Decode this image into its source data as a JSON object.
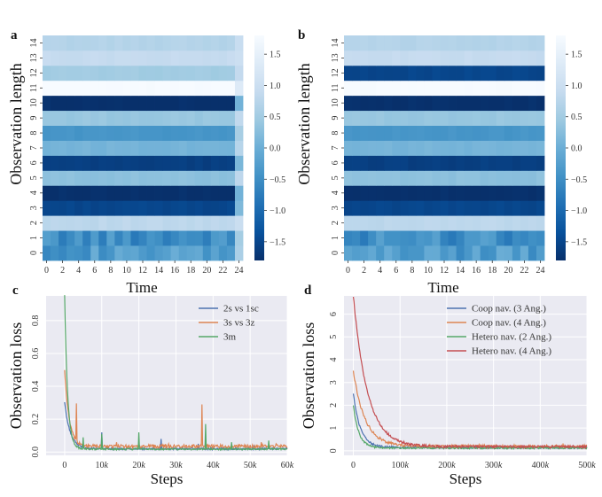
{
  "colormap": {
    "name": "Blues_r",
    "stops": [
      "#08306b",
      "#08519c",
      "#2171b5",
      "#4292c6",
      "#6baed6",
      "#9ecae1",
      "#c6dbef",
      "#deebf7",
      "#f7fbff"
    ]
  },
  "chart_data": [
    {
      "panel": "a",
      "type": "heatmap",
      "xlabel": "Time",
      "ylabel": "Observation length",
      "x_ticks": [
        "0",
        "2",
        "4",
        "6",
        "8",
        "10",
        "12",
        "14",
        "16",
        "18",
        "20",
        "22",
        "24"
      ],
      "y_ticks": [
        "0",
        "1",
        "2",
        "3",
        "4",
        "5",
        "6",
        "7",
        "8",
        "9",
        "10",
        "11",
        "12",
        "13",
        "14"
      ],
      "n_cols": 25,
      "colorbar": {
        "range": [
          -1.8,
          1.8
        ],
        "ticks": [
          "-1.5",
          "-1.0",
          "-0.5",
          "0.0",
          "0.5",
          "1.0",
          "1.5"
        ]
      },
      "row_values": [
        -0.3,
        -0.5,
        0.8,
        -1.5,
        -1.8,
        0.3,
        -1.6,
        0.1,
        -0.4,
        0.4,
        -1.8,
        1.8,
        0.5,
        0.9,
        0.7
      ],
      "row_variation": {
        "0": 0.3,
        "1": 0.3,
        "2": 0.05
      },
      "last_col_fade": true
    },
    {
      "panel": "b",
      "type": "heatmap",
      "xlabel": "Time",
      "ylabel": "Observation length",
      "x_ticks": [
        "0",
        "2",
        "4",
        "6",
        "8",
        "10",
        "12",
        "14",
        "16",
        "18",
        "20",
        "22",
        "24"
      ],
      "y_ticks": [
        "0",
        "1",
        "2",
        "3",
        "4",
        "5",
        "6",
        "7",
        "8",
        "9",
        "10",
        "11",
        "12",
        "13",
        "14"
      ],
      "n_cols": 25,
      "colorbar": {
        "range": [
          -1.8,
          1.8
        ],
        "ticks": [
          "-1.5",
          "-1.0",
          "-0.5",
          "0.0",
          "0.5",
          "1.0",
          "1.5"
        ]
      },
      "row_values": [
        -0.3,
        -0.5,
        0.8,
        -1.5,
        -1.8,
        0.3,
        -1.6,
        0.1,
        -0.4,
        0.4,
        -1.8,
        1.8,
        -1.5,
        0.9,
        0.7
      ],
      "row_variation": {
        "0": 0.3,
        "1": 0.3,
        "2": 0.05
      },
      "last_col_fade": false
    },
    {
      "panel": "c",
      "type": "line",
      "xlabel": "Steps",
      "ylabel": "Observation loss",
      "xlim": [
        -5000,
        60000
      ],
      "ylim": [
        -0.02,
        0.95
      ],
      "x_ticks": [
        0,
        10000,
        20000,
        30000,
        40000,
        50000,
        60000
      ],
      "x_tick_labels": [
        "0",
        "10k",
        "20k",
        "30k",
        "40k",
        "50k",
        "60k"
      ],
      "y_ticks": [
        0.0,
        0.2,
        0.4,
        0.6,
        0.8
      ],
      "y_tick_labels": [
        "0.0",
        "0.2",
        "0.4",
        "0.6",
        "0.8"
      ],
      "legend_position": "top-right",
      "series": [
        {
          "name": "2s vs 1sc",
          "color": "#4c72b0",
          "start": 0.3,
          "plateau": 0.02,
          "decay": 1500,
          "spikes": [
            [
              3000,
              0.05
            ],
            [
              10000,
              0.12
            ],
            [
              26000,
              0.08
            ],
            [
              36000,
              0.05
            ],
            [
              51000,
              0.04
            ]
          ]
        },
        {
          "name": "3s vs 3z",
          "color": "#dd8452",
          "start": 0.5,
          "plateau": 0.035,
          "decay": 1200,
          "spikes": [
            [
              3200,
              0.37
            ],
            [
              14000,
              0.06
            ],
            [
              28000,
              0.05
            ],
            [
              37000,
              0.29
            ],
            [
              53000,
              0.06
            ],
            [
              57000,
              0.05
            ]
          ]
        },
        {
          "name": "3m",
          "color": "#55a868",
          "start": 0.95,
          "plateau": 0.018,
          "decay": 800,
          "spikes": [
            [
              1000,
              0.12
            ],
            [
              5000,
              0.09
            ],
            [
              10000,
              0.11
            ],
            [
              20000,
              0.12
            ],
            [
              38000,
              0.17
            ],
            [
              45000,
              0.06
            ],
            [
              55000,
              0.07
            ]
          ]
        }
      ]
    },
    {
      "panel": "d",
      "type": "line",
      "xlabel": "Steps",
      "ylabel": "Observation loss",
      "xlim": [
        -20000,
        500000
      ],
      "ylim": [
        -0.2,
        6.8
      ],
      "x_ticks": [
        0,
        100000,
        200000,
        300000,
        400000,
        500000
      ],
      "x_tick_labels": [
        "0",
        "100k",
        "200k",
        "300k",
        "400k",
        "500k"
      ],
      "y_ticks": [
        0,
        1,
        2,
        3,
        4,
        5,
        6
      ],
      "y_tick_labels": [
        "0",
        "1",
        "2",
        "3",
        "4",
        "5",
        "6"
      ],
      "legend_position": "top-right",
      "series": [
        {
          "name": "Coop nav. (3 Ang.)",
          "color": "#4c72b0",
          "start": 2.5,
          "plateau": 0.15,
          "decay": 15000,
          "spikes": []
        },
        {
          "name": "Coop nav. (4 Ang.)",
          "color": "#dd8452",
          "start": 3.5,
          "plateau": 0.2,
          "decay": 25000,
          "spikes": []
        },
        {
          "name": "Hetero nav. (2 Ang.)",
          "color": "#55a868",
          "start": 2.0,
          "plateau": 0.12,
          "decay": 12000,
          "spikes": []
        },
        {
          "name": "Hetero nav. (4 Ang.)",
          "color": "#c44e52",
          "start": 6.8,
          "plateau": 0.18,
          "decay": 30000,
          "spikes": [
            [
              400000,
              0.2
            ]
          ]
        }
      ]
    }
  ]
}
